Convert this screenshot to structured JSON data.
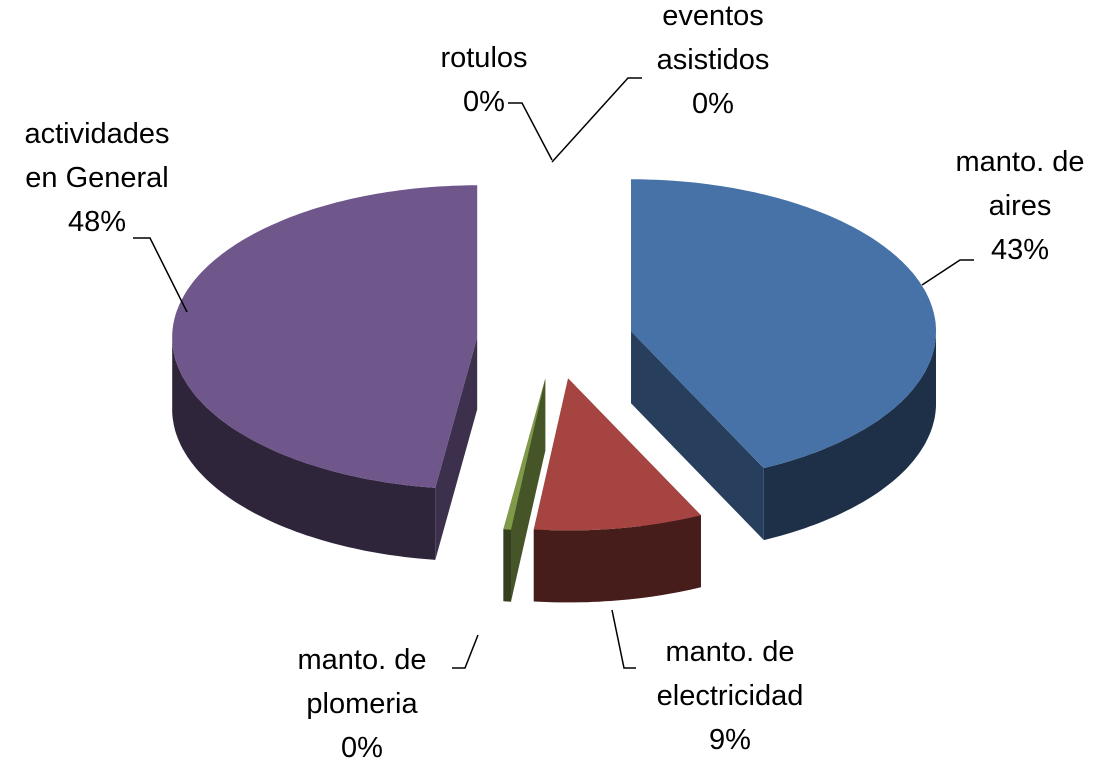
{
  "chart_data": {
    "type": "pie3d",
    "categories": [
      "manto. de aires",
      "manto. de electricidad",
      "manto. de plomeria",
      "actividades en General",
      "rotulos",
      "eventos asistidos"
    ],
    "values": [
      43,
      9,
      0.4,
      48,
      0,
      0
    ],
    "value_labels": [
      "43%",
      "9%",
      "0%",
      "48%",
      "0%",
      "0%"
    ],
    "colors": [
      "#4672a8",
      "#a64441",
      "#7f9a48",
      "#6f578c",
      "#4bacc6",
      "#f79646"
    ]
  }
}
